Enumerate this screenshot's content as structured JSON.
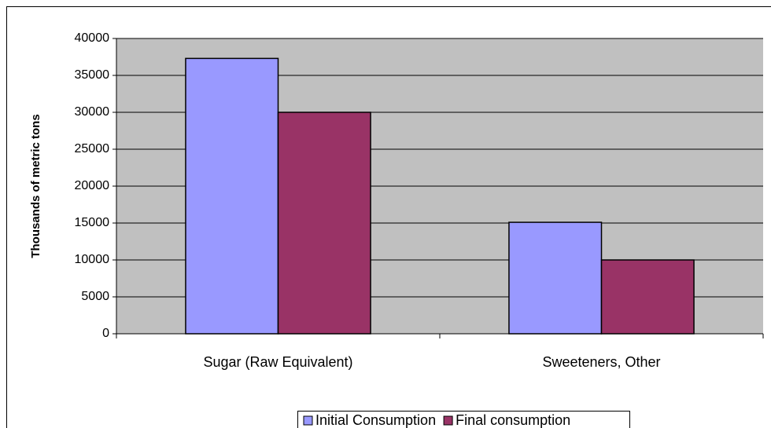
{
  "chart_data": {
    "type": "bar",
    "ylabel": "Thousands of metric tons",
    "categories": [
      "Sugar (Raw Equivalent)",
      "Sweeteners, Other"
    ],
    "series": [
      {
        "name": "Initial Consumption",
        "color": "#9999ff",
        "values": [
          37300,
          15100
        ]
      },
      {
        "name": "Final consumption",
        "color": "#993366",
        "values": [
          30000,
          10000
        ]
      }
    ],
    "ylim": [
      0,
      40000
    ],
    "yticks": [
      0,
      5000,
      10000,
      15000,
      20000,
      25000,
      30000,
      35000,
      40000
    ],
    "grid": true,
    "legend": "bottom",
    "plot_background": "#c0c0c0"
  }
}
